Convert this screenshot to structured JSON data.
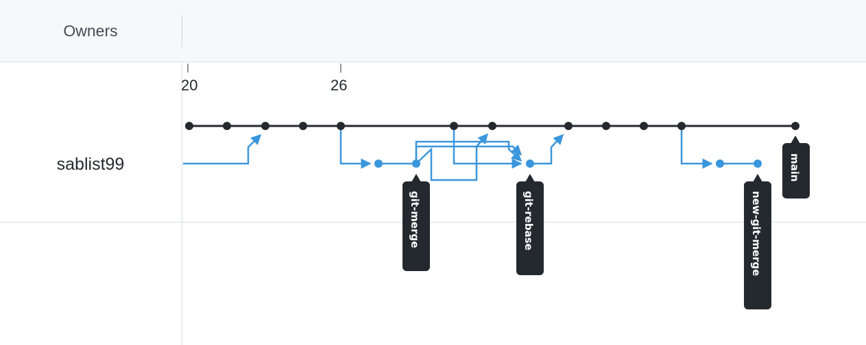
{
  "header": {
    "column_title": "Owners"
  },
  "timeline": {
    "ticks": [
      "20",
      "26"
    ]
  },
  "owners": [
    {
      "name": "sablist99"
    }
  ],
  "branches": [
    {
      "name": "git-merge"
    },
    {
      "name": "git-rebase"
    },
    {
      "name": "new-git-merge"
    },
    {
      "name": "main"
    }
  ],
  "colors": {
    "main_line": "#24292f",
    "branch_line": "#3a96dd",
    "label_bg": "#24292f",
    "label_text": "#ffffff"
  }
}
